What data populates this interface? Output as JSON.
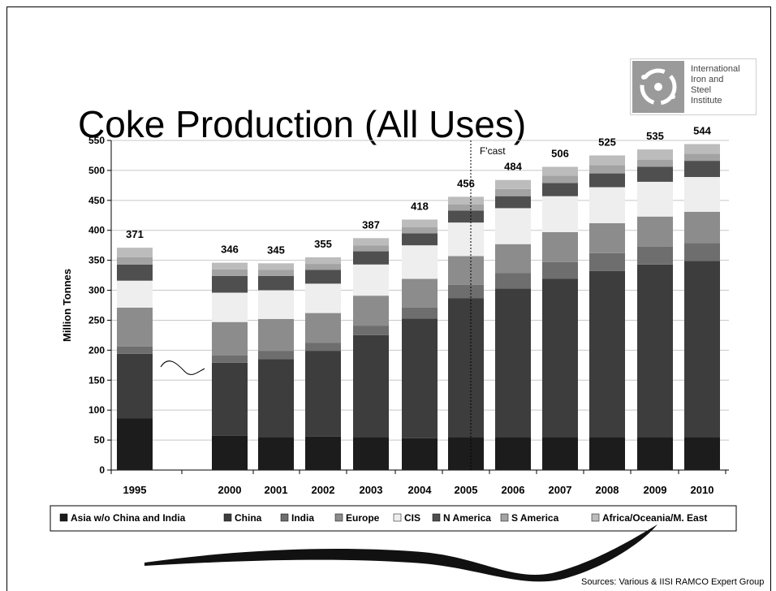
{
  "title": "Coke Production (All Uses)",
  "logo": {
    "lines": [
      "International",
      "Iron and",
      "Steel",
      "Institute"
    ]
  },
  "sources": "Sources: Various & IISI RAMCO Expert Group",
  "chart_data": {
    "type": "bar",
    "stacked": true,
    "title": "Coke Production (All Uses)",
    "ylabel": "Million Tonnes",
    "xlabel": "",
    "ylim": [
      0,
      550
    ],
    "yticks": [
      0,
      50,
      100,
      150,
      200,
      250,
      300,
      350,
      400,
      450,
      500,
      550
    ],
    "categories": [
      "1995",
      "2000",
      "2001",
      "2002",
      "2003",
      "2004",
      "2005",
      "2006",
      "2007",
      "2008",
      "2009",
      "2010"
    ],
    "totals": [
      371,
      346,
      345,
      355,
      387,
      418,
      456,
      484,
      506,
      525,
      535,
      544
    ],
    "forecast_label": "F'cast",
    "legend_position": "bottom",
    "gridlines": true,
    "series": [
      {
        "name": "Asia w/o China and India",
        "color": "#1c1c1c",
        "values": [
          86,
          57,
          55,
          56,
          55,
          53,
          55,
          55,
          55,
          55,
          55,
          55
        ]
      },
      {
        "name": "China",
        "color": "#3d3d3d",
        "values": [
          108,
          122,
          130,
          143,
          170,
          200,
          232,
          248,
          264,
          277,
          288,
          294
        ]
      },
      {
        "name": "India",
        "color": "#6e6e6e",
        "values": [
          12,
          12,
          14,
          13,
          16,
          18,
          22,
          26,
          28,
          30,
          30,
          30
        ]
      },
      {
        "name": "Europe",
        "color": "#8c8c8c",
        "values": [
          65,
          56,
          53,
          50,
          50,
          48,
          48,
          48,
          50,
          50,
          50,
          52
        ]
      },
      {
        "name": "CIS",
        "color": "#eeeeee",
        "values": [
          45,
          49,
          48,
          49,
          52,
          56,
          56,
          60,
          60,
          60,
          58,
          58
        ]
      },
      {
        "name": "N America",
        "color": "#4f4f4f",
        "values": [
          27,
          28,
          24,
          23,
          22,
          20,
          20,
          20,
          22,
          23,
          25,
          27
        ]
      },
      {
        "name": "S America",
        "color": "#a3a3a3",
        "values": [
          12,
          11,
          10,
          10,
          10,
          10,
          10,
          12,
          12,
          14,
          12,
          12
        ]
      },
      {
        "name": "Africa/Oceania/M. East",
        "color": "#bcbcbc",
        "values": [
          16,
          11,
          11,
          11,
          12,
          13,
          13,
          15,
          15,
          16,
          17,
          16
        ]
      }
    ]
  }
}
